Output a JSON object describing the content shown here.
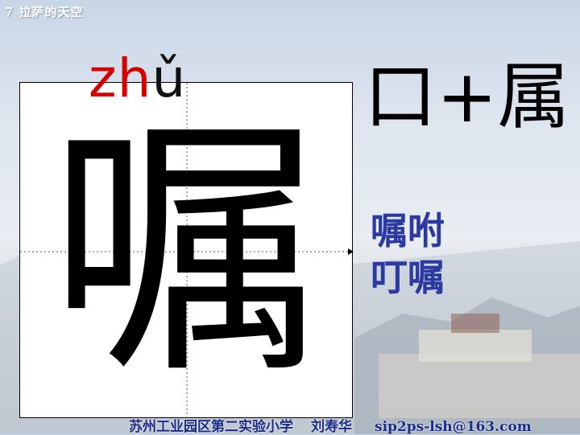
{
  "slide": {
    "lesson_title": "7 拉萨的天空",
    "pinyin_initial": "zh",
    "pinyin_final": "ǔ",
    "character": "嘱",
    "composition": "口+属",
    "words": [
      "嘱咐",
      "叮嘱"
    ],
    "footer": {
      "school": "苏州工业园区第二实验小学",
      "author": "刘寿华",
      "email": "sip2ps-lsh@163.com"
    }
  },
  "colors": {
    "pinyin_initial": "#d40000",
    "words": "#2a3aa0",
    "footer": "#1c2a8a"
  }
}
